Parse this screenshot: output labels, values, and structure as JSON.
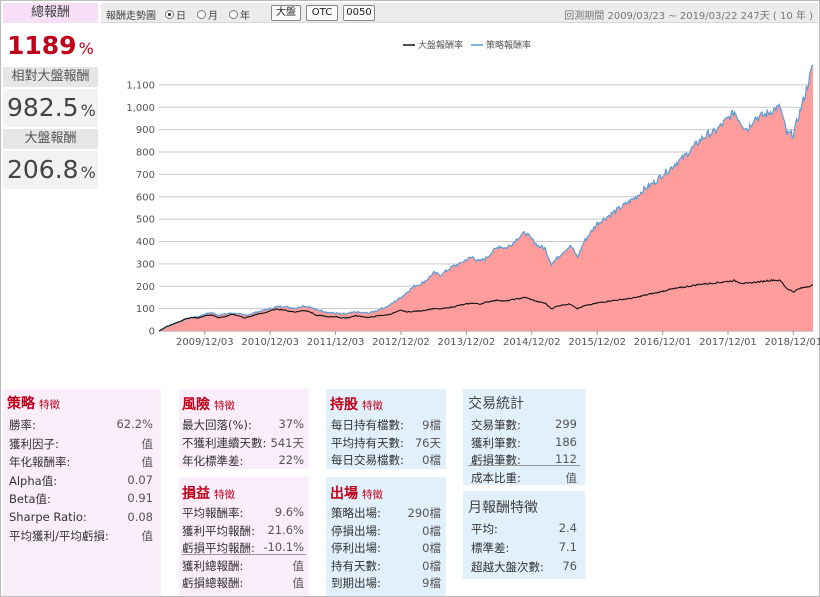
{
  "returns": {
    "total_label": "總報酬",
    "total_value": "1189",
    "relative_label": "相對大盤報酬",
    "relative_value": "982.5",
    "market_label": "大盤報酬",
    "market_value": "206.8",
    "pct": "%"
  },
  "toolbar": {
    "label": "報酬走勢圖",
    "radios": [
      {
        "label": "日",
        "selected": true
      },
      {
        "label": "月",
        "selected": false
      },
      {
        "label": "年",
        "selected": false
      }
    ],
    "buttons": [
      "大盤",
      "OTC",
      "0050"
    ],
    "period": "回測期間  2009/03/23 ~ 2019/03/22   247天 ( 10 年 )"
  },
  "colors": {
    "area_fill": "#ff9c9c",
    "strategy_line": "#5b9bd5",
    "market_line": "#111111",
    "accent": "#c0001a"
  },
  "chart_data": {
    "type": "area",
    "title": "",
    "xlabel": "",
    "ylabel": "",
    "legend": "top-center",
    "grid": true,
    "ylim": [
      0,
      1180
    ],
    "yticks": [
      0,
      100,
      200,
      300,
      400,
      500,
      600,
      700,
      800,
      900,
      1000,
      1100
    ],
    "ytick_labels": [
      "0",
      "100",
      "200",
      "300",
      "400",
      "500",
      "600",
      "700",
      "800",
      "900",
      "1,000",
      "1,100"
    ],
    "xtick_labels": [
      "2009/12/03",
      "2010/12/03",
      "2011/12/03",
      "2012/12/02",
      "2013/12/02",
      "2014/12/02",
      "2015/12/02",
      "2016/12/01",
      "2017/12/01",
      "2018/12/01"
    ],
    "x_start": "2009/03/23",
    "x_end": "2019/03/22",
    "series": [
      {
        "name": "大盤報酬率",
        "color": "#111111",
        "points": [
          [
            0.0,
            0
          ],
          [
            0.1,
            18
          ],
          [
            0.2,
            30
          ],
          [
            0.3,
            40
          ],
          [
            0.4,
            55
          ],
          [
            0.5,
            60
          ],
          [
            0.6,
            58
          ],
          [
            0.7,
            68
          ],
          [
            0.8,
            72
          ],
          [
            0.9,
            60
          ],
          [
            1.0,
            62
          ],
          [
            1.1,
            75
          ],
          [
            1.2,
            70
          ],
          [
            1.3,
            58
          ],
          [
            1.4,
            65
          ],
          [
            1.5,
            75
          ],
          [
            1.6,
            80
          ],
          [
            1.7,
            90
          ],
          [
            1.8,
            98
          ],
          [
            1.9,
            95
          ],
          [
            2.0,
            88
          ],
          [
            2.1,
            85
          ],
          [
            2.2,
            92
          ],
          [
            2.3,
            88
          ],
          [
            2.4,
            70
          ],
          [
            2.5,
            68
          ],
          [
            2.6,
            62
          ],
          [
            2.7,
            65
          ],
          [
            2.8,
            58
          ],
          [
            2.9,
            60
          ],
          [
            3.0,
            68
          ],
          [
            3.1,
            65
          ],
          [
            3.2,
            60
          ],
          [
            3.3,
            65
          ],
          [
            3.4,
            70
          ],
          [
            3.5,
            72
          ],
          [
            3.6,
            82
          ],
          [
            3.7,
            92
          ],
          [
            3.8,
            85
          ],
          [
            3.9,
            88
          ],
          [
            4.0,
            90
          ],
          [
            4.1,
            95
          ],
          [
            4.2,
            100
          ],
          [
            4.3,
            98
          ],
          [
            4.4,
            103
          ],
          [
            4.5,
            108
          ],
          [
            4.6,
            115
          ],
          [
            4.7,
            120
          ],
          [
            4.8,
            125
          ],
          [
            4.9,
            120
          ],
          [
            5.0,
            128
          ],
          [
            5.1,
            135
          ],
          [
            5.2,
            138
          ],
          [
            5.3,
            133
          ],
          [
            5.4,
            140
          ],
          [
            5.5,
            145
          ],
          [
            5.6,
            150
          ],
          [
            5.7,
            140
          ],
          [
            5.8,
            130
          ],
          [
            5.9,
            125
          ],
          [
            6.0,
            100
          ],
          [
            6.1,
            112
          ],
          [
            6.2,
            118
          ],
          [
            6.3,
            120
          ],
          [
            6.4,
            100
          ],
          [
            6.5,
            112
          ],
          [
            6.6,
            118
          ],
          [
            6.7,
            125
          ],
          [
            6.8,
            130
          ],
          [
            6.9,
            135
          ],
          [
            7.0,
            138
          ],
          [
            7.1,
            142
          ],
          [
            7.2,
            145
          ],
          [
            7.3,
            150
          ],
          [
            7.4,
            158
          ],
          [
            7.5,
            165
          ],
          [
            7.6,
            170
          ],
          [
            7.7,
            178
          ],
          [
            7.8,
            185
          ],
          [
            7.9,
            190
          ],
          [
            8.0,
            195
          ],
          [
            8.1,
            200
          ],
          [
            8.2,
            205
          ],
          [
            8.3,
            210
          ],
          [
            8.4,
            212
          ],
          [
            8.5,
            215
          ],
          [
            8.6,
            218
          ],
          [
            8.7,
            222
          ],
          [
            8.8,
            225
          ],
          [
            8.9,
            215
          ],
          [
            9.0,
            212
          ],
          [
            9.1,
            218
          ],
          [
            9.2,
            220
          ],
          [
            9.3,
            225
          ],
          [
            9.4,
            228
          ],
          [
            9.5,
            225
          ],
          [
            9.6,
            190
          ],
          [
            9.7,
            175
          ],
          [
            9.8,
            190
          ],
          [
            9.9,
            198
          ],
          [
            10.0,
            205
          ]
        ]
      },
      {
        "name": "策略報酬率",
        "color": "#5b9bd5",
        "points": [
          [
            0.0,
            0
          ],
          [
            0.1,
            15
          ],
          [
            0.2,
            28
          ],
          [
            0.3,
            40
          ],
          [
            0.4,
            52
          ],
          [
            0.5,
            60
          ],
          [
            0.6,
            65
          ],
          [
            0.7,
            75
          ],
          [
            0.8,
            82
          ],
          [
            0.9,
            72
          ],
          [
            1.0,
            75
          ],
          [
            1.1,
            80
          ],
          [
            1.2,
            78
          ],
          [
            1.3,
            70
          ],
          [
            1.4,
            75
          ],
          [
            1.5,
            85
          ],
          [
            1.6,
            92
          ],
          [
            1.7,
            100
          ],
          [
            1.8,
            108
          ],
          [
            1.9,
            110
          ],
          [
            2.0,
            105
          ],
          [
            2.1,
            102
          ],
          [
            2.2,
            112
          ],
          [
            2.3,
            108
          ],
          [
            2.4,
            95
          ],
          [
            2.5,
            90
          ],
          [
            2.6,
            82
          ],
          [
            2.7,
            80
          ],
          [
            2.8,
            75
          ],
          [
            2.9,
            78
          ],
          [
            3.0,
            85
          ],
          [
            3.1,
            82
          ],
          [
            3.2,
            80
          ],
          [
            3.3,
            88
          ],
          [
            3.4,
            100
          ],
          [
            3.5,
            110
          ],
          [
            3.6,
            130
          ],
          [
            3.7,
            150
          ],
          [
            3.8,
            175
          ],
          [
            3.9,
            200
          ],
          [
            4.0,
            210
          ],
          [
            4.1,
            230
          ],
          [
            4.2,
            260
          ],
          [
            4.3,
            250
          ],
          [
            4.4,
            270
          ],
          [
            4.5,
            290
          ],
          [
            4.6,
            300
          ],
          [
            4.7,
            320
          ],
          [
            4.8,
            330
          ],
          [
            4.9,
            310
          ],
          [
            5.0,
            325
          ],
          [
            5.1,
            355
          ],
          [
            5.2,
            380
          ],
          [
            5.3,
            370
          ],
          [
            5.4,
            390
          ],
          [
            5.5,
            420
          ],
          [
            5.6,
            440
          ],
          [
            5.7,
            410
          ],
          [
            5.8,
            380
          ],
          [
            5.9,
            370
          ],
          [
            6.0,
            300
          ],
          [
            6.1,
            330
          ],
          [
            6.2,
            360
          ],
          [
            6.3,
            380
          ],
          [
            6.4,
            330
          ],
          [
            6.5,
            400
          ],
          [
            6.6,
            440
          ],
          [
            6.7,
            480
          ],
          [
            6.8,
            500
          ],
          [
            6.9,
            520
          ],
          [
            7.0,
            540
          ],
          [
            7.1,
            560
          ],
          [
            7.2,
            580
          ],
          [
            7.3,
            600
          ],
          [
            7.4,
            630
          ],
          [
            7.5,
            650
          ],
          [
            7.6,
            670
          ],
          [
            7.7,
            700
          ],
          [
            7.8,
            720
          ],
          [
            7.9,
            750
          ],
          [
            8.0,
            770
          ],
          [
            8.1,
            800
          ],
          [
            8.2,
            830
          ],
          [
            8.3,
            860
          ],
          [
            8.4,
            880
          ],
          [
            8.5,
            890
          ],
          [
            8.6,
            920
          ],
          [
            8.7,
            950
          ],
          [
            8.8,
            980
          ],
          [
            8.9,
            930
          ],
          [
            9.0,
            900
          ],
          [
            9.1,
            950
          ],
          [
            9.2,
            960
          ],
          [
            9.3,
            970
          ],
          [
            9.4,
            990
          ],
          [
            9.5,
            1000
          ],
          [
            9.6,
            880
          ],
          [
            9.7,
            880
          ],
          [
            9.8,
            980
          ],
          [
            9.9,
            1080
          ],
          [
            10.0,
            1189
          ]
        ]
      }
    ]
  },
  "panels": {
    "strategy": {
      "title": "策略",
      "sub": "特徵",
      "rows": [
        {
          "k": "勝率:",
          "v": "62.2%"
        },
        {
          "k": "獲利因子:",
          "v": "值"
        },
        {
          "k": "年化報酬率:",
          "v": "值"
        },
        {
          "k": "Alpha值:",
          "v": "0.07"
        },
        {
          "k": "Beta值:",
          "v": "0.91"
        },
        {
          "k": "Sharpe Ratio:",
          "v": "0.08"
        },
        {
          "k": "平均獲利/平均虧損:",
          "v": "值"
        }
      ]
    },
    "risk": {
      "title": "風險",
      "sub": "特徵",
      "rows": [
        {
          "k": "最大回落(%):",
          "v": "37%"
        },
        {
          "k": "不獲利連續天數:",
          "v": "541天"
        },
        {
          "k": "年化標準差:",
          "v": "22%"
        }
      ]
    },
    "pnl": {
      "title": "損益",
      "sub": "特徵",
      "rows": [
        {
          "k": "平均報酬率:",
          "v": "9.6%"
        },
        {
          "k": "獲利平均報酬:",
          "v": "21.6%"
        },
        {
          "k": "虧損平均報酬:",
          "v": "-10.1%"
        },
        {
          "k": "獲利總報酬:",
          "v": "值"
        },
        {
          "k": "虧損總報酬:",
          "v": "值"
        }
      ]
    },
    "holding": {
      "title": "持股",
      "sub": "特徵",
      "rows": [
        {
          "k": "每日持有檔數:",
          "v": "9檔"
        },
        {
          "k": "平均持有天數:",
          "v": "76天"
        },
        {
          "k": "每日交易檔數:",
          "v": "0檔"
        }
      ]
    },
    "exit": {
      "title": "出場",
      "sub": "特徵",
      "rows": [
        {
          "k": "策略出場:",
          "v": "290檔"
        },
        {
          "k": "停損出場:",
          "v": "0檔"
        },
        {
          "k": "停利出場:",
          "v": "0檔"
        },
        {
          "k": "持有天數:",
          "v": "0檔"
        },
        {
          "k": "到期出場:",
          "v": "9檔"
        }
      ]
    },
    "trades": {
      "title": "交易統計",
      "rows": [
        {
          "k": "交易筆數:",
          "v": "299"
        },
        {
          "k": "獲利筆數:",
          "v": "186"
        },
        {
          "k": "虧損筆數:",
          "v": "112"
        },
        {
          "k": "成本比重:",
          "v": "值"
        }
      ]
    },
    "monthly": {
      "title": "月報酬特徵",
      "rows": [
        {
          "k": "平均:",
          "v": "2.4"
        },
        {
          "k": "標準差:",
          "v": "7.1"
        },
        {
          "k": "超越大盤次數:",
          "v": "76"
        }
      ]
    }
  }
}
